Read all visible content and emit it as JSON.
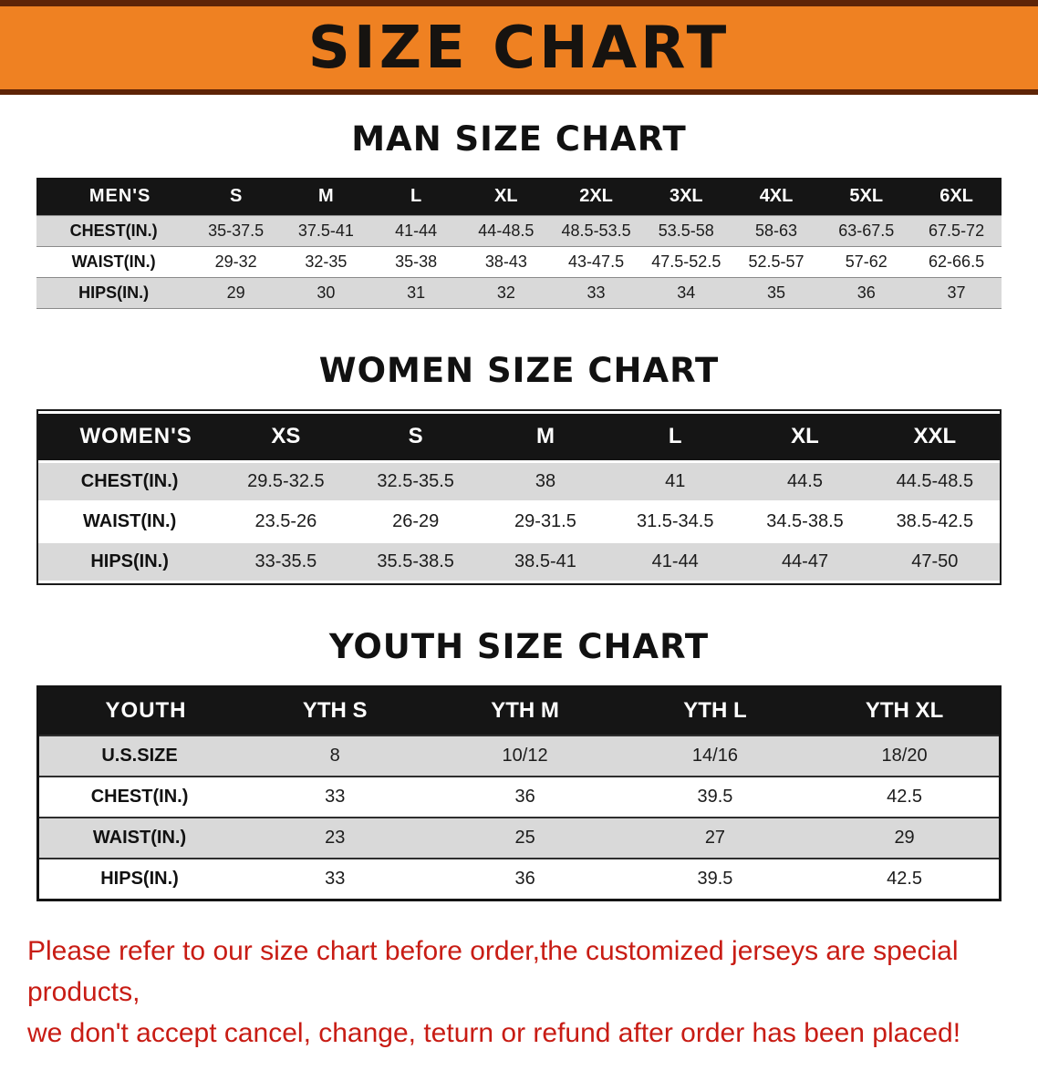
{
  "banner": {
    "title": "SIZE CHART"
  },
  "colors": {
    "banner_bg": "#ef8122",
    "banner_border": "#5e2407",
    "header_bg": "#151515",
    "stripe": "#d9d9d9",
    "notice": "#c81c14"
  },
  "sections": [
    {
      "variant": "men",
      "heading": "MAN SIZE CHART",
      "table": {
        "header": [
          "MEN'S",
          "S",
          "M",
          "L",
          "XL",
          "2XL",
          "3XL",
          "4XL",
          "5XL",
          "6XL"
        ],
        "rows": [
          {
            "label": "CHEST(IN.)",
            "values": [
              "35-37.5",
              "37.5-41",
              "41-44",
              "44-48.5",
              "48.5-53.5",
              "53.5-58",
              "58-63",
              "63-67.5",
              "67.5-72"
            ]
          },
          {
            "label": "WAIST(IN.)",
            "values": [
              "29-32",
              "32-35",
              "35-38",
              "38-43",
              "43-47.5",
              "47.5-52.5",
              "52.5-57",
              "57-62",
              "62-66.5"
            ]
          },
          {
            "label": "HIPS(IN.)",
            "values": [
              "29",
              "30",
              "31",
              "32",
              "33",
              "34",
              "35",
              "36",
              "37"
            ]
          }
        ]
      }
    },
    {
      "variant": "women",
      "heading": "WOMEN SIZE CHART",
      "table": {
        "header": [
          "WOMEN'S",
          "XS",
          "S",
          "M",
          "L",
          "XL",
          "XXL"
        ],
        "rows": [
          {
            "label": "CHEST(IN.)",
            "values": [
              "29.5-32.5",
              "32.5-35.5",
              "38",
              "41",
              "44.5",
              "44.5-48.5"
            ]
          },
          {
            "label": "WAIST(IN.)",
            "values": [
              "23.5-26",
              "26-29",
              "29-31.5",
              "31.5-34.5",
              "34.5-38.5",
              "38.5-42.5"
            ]
          },
          {
            "label": "HIPS(IN.)",
            "values": [
              "33-35.5",
              "35.5-38.5",
              "38.5-41",
              "41-44",
              "44-47",
              "47-50"
            ]
          }
        ]
      }
    },
    {
      "variant": "youth",
      "heading": "YOUTH SIZE CHART",
      "table": {
        "header": [
          "YOUTH",
          "YTH S",
          "YTH M",
          "YTH L",
          "YTH XL"
        ],
        "rows": [
          {
            "label": "U.S.SIZE",
            "values": [
              "8",
              "10/12",
              "14/16",
              "18/20"
            ]
          },
          {
            "label": "CHEST(IN.)",
            "values": [
              "33",
              "36",
              "39.5",
              "42.5"
            ]
          },
          {
            "label": "WAIST(IN.)",
            "values": [
              "23",
              "25",
              "27",
              "29"
            ]
          },
          {
            "label": "HIPS(IN.)",
            "values": [
              "33",
              "36",
              "39.5",
              "42.5"
            ]
          }
        ]
      }
    }
  ],
  "footer": {
    "lines": [
      "Please refer to our size chart before order,the customized jerseys are special products,",
      "we don't accept cancel, change, teturn or refund after order has been placed!"
    ]
  }
}
